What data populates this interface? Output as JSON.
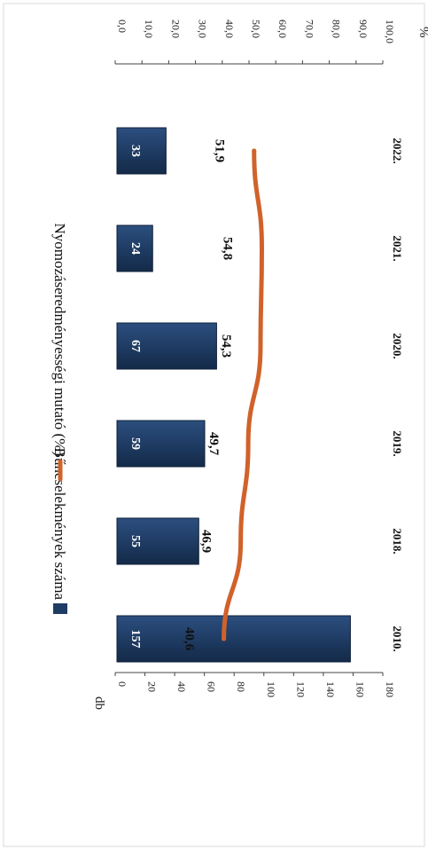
{
  "chart_data": {
    "type": "bar",
    "categories": [
      "2010.",
      "2018.",
      "2019.",
      "2020.",
      "2021.",
      "2022."
    ],
    "series": [
      {
        "name": "Bűncselekmények száma",
        "type": "bar",
        "axis": "primary",
        "values": [
          157,
          55,
          59,
          67,
          24,
          33
        ],
        "color": "#1f3c64"
      },
      {
        "name": "Nyomozáseredményességi mutató (%)",
        "type": "line",
        "axis": "secondary",
        "values": [
          40.6,
          46.9,
          49.7,
          54.3,
          54.8,
          51.9
        ],
        "color": "#d0622a"
      }
    ],
    "bar_labels": [
      "157",
      "55",
      "59",
      "67",
      "24",
      "33"
    ],
    "line_labels": [
      "40,6",
      "46,9",
      "49,7",
      "54,3",
      "54,8",
      "51,9"
    ],
    "primary_axis": {
      "unit": "db",
      "ylim": [
        0,
        180
      ],
      "ticks": [
        "0",
        "20",
        "40",
        "60",
        "80",
        "100",
        "120",
        "140",
        "160",
        "180"
      ]
    },
    "secondary_axis": {
      "unit": "%",
      "ylim": [
        0,
        100
      ],
      "ticks": [
        "0,0",
        "10,0",
        "20,0",
        "30,0",
        "40,0",
        "50,0",
        "60,0",
        "70,0",
        "80,0",
        "90,0",
        "100,0"
      ]
    },
    "orientation": "rotated 90° clockwise",
    "legend_position": "top",
    "grid": false
  }
}
